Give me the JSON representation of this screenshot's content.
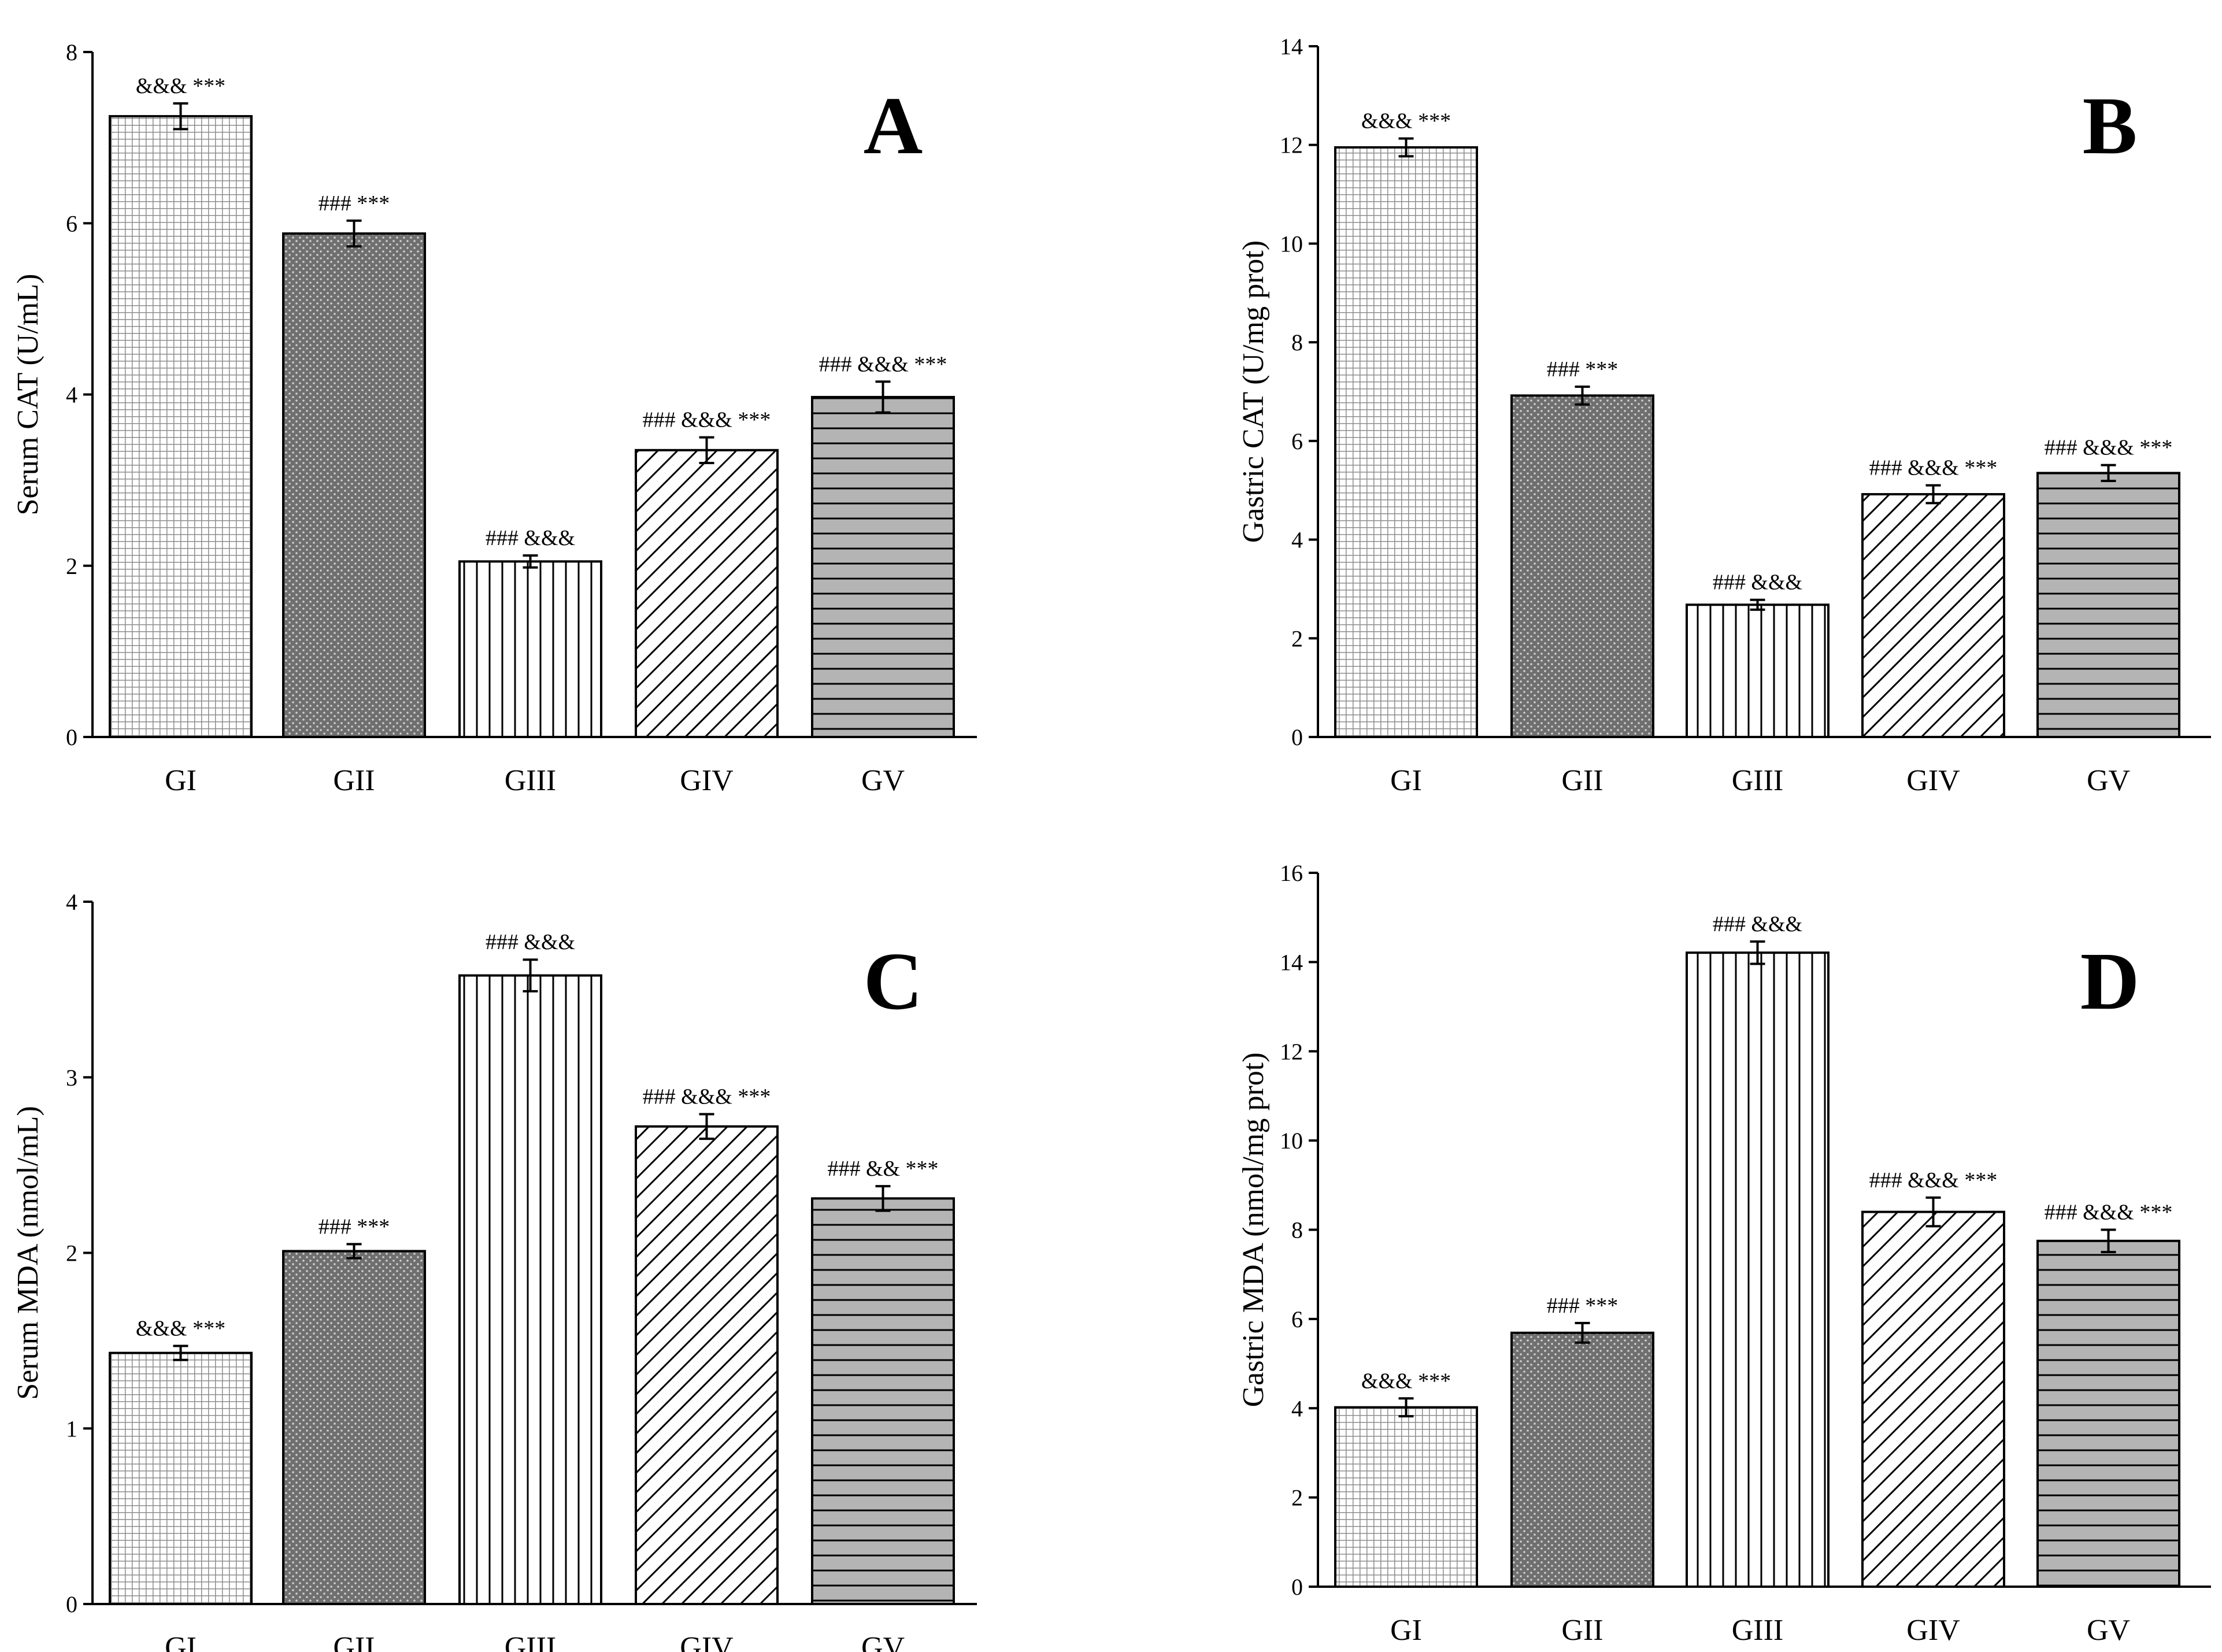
{
  "figure": {
    "colors": {
      "ink": "#000000",
      "background": "#ffffff",
      "dark_fill": "#6f6f6f",
      "hatch_fill": "#ffffff"
    },
    "patterns": [
      "grid",
      "dots",
      "vertical",
      "diagonal",
      "horizontal"
    ]
  },
  "chart_data": [
    {
      "id": "A",
      "type": "bar",
      "panel_label": "A",
      "title": "",
      "xlabel": "",
      "ylabel": "Serum CAT (U/mL)",
      "categories": [
        "GI",
        "GII",
        "GIII",
        "GIV",
        "GV"
      ],
      "values": [
        7.25,
        5.88,
        2.05,
        3.35,
        3.97
      ],
      "errors": [
        0.15,
        0.15,
        0.07,
        0.15,
        0.18
      ],
      "annotations": [
        "&&& ***",
        "### ***",
        "### &&&",
        "### &&& ***",
        "### &&& ***"
      ],
      "ylim": [
        0,
        8
      ],
      "yticks": [
        0,
        2,
        4,
        6,
        8
      ],
      "ytick_labels": [
        "0",
        "2",
        "4",
        "6",
        "8"
      ],
      "grid": false
    },
    {
      "id": "B",
      "type": "bar",
      "panel_label": "B",
      "title": "",
      "xlabel": "",
      "ylabel": "Gastric CAT (U/mg prot)",
      "categories": [
        "GI",
        "GII",
        "GIII",
        "GIV",
        "GV"
      ],
      "values": [
        11.95,
        6.92,
        2.68,
        4.92,
        5.35
      ],
      "errors": [
        0.18,
        0.18,
        0.1,
        0.18,
        0.16
      ],
      "annotations": [
        "&&& ***",
        "### ***",
        "### &&&",
        "### &&& ***",
        "### &&& ***"
      ],
      "ylim": [
        0,
        14
      ],
      "yticks": [
        0,
        2,
        4,
        6,
        8,
        10,
        12,
        14
      ],
      "ytick_labels": [
        "0",
        "2",
        "4",
        "6",
        "8",
        "10",
        "12",
        "14"
      ],
      "grid": false
    },
    {
      "id": "C",
      "type": "bar",
      "panel_label": "C",
      "title": "",
      "xlabel": "",
      "ylabel": "Serum MDA (nmol/mL)",
      "categories": [
        "GI",
        "GII",
        "GIII",
        "GIV",
        "GV"
      ],
      "values": [
        1.43,
        2.01,
        3.58,
        2.72,
        2.31
      ],
      "errors": [
        0.04,
        0.04,
        0.09,
        0.07,
        0.07
      ],
      "annotations": [
        "&&& ***",
        "### ***",
        "### &&&",
        "### &&& ***",
        "### && ***"
      ],
      "ylim": [
        0,
        4
      ],
      "yticks": [
        0,
        1,
        2,
        3,
        4
      ],
      "ytick_labels": [
        "0",
        "1",
        "2",
        "3",
        "4"
      ],
      "grid": false
    },
    {
      "id": "D",
      "type": "bar",
      "panel_label": "D",
      "title": "",
      "xlabel": "",
      "ylabel": "Gastric MDA (nmol/mg prot)",
      "categories": [
        "GI",
        "GII",
        "GIII",
        "GIV",
        "GV"
      ],
      "values": [
        4.02,
        5.69,
        14.21,
        8.4,
        7.75
      ],
      "errors": [
        0.2,
        0.22,
        0.25,
        0.32,
        0.25
      ],
      "annotations": [
        "&&& ***",
        "### ***",
        "### &&&",
        "### &&& ***",
        "### &&& ***"
      ],
      "ylim": [
        0,
        16
      ],
      "yticks": [
        0,
        2,
        4,
        6,
        8,
        10,
        12,
        14,
        16
      ],
      "ytick_labels": [
        "0",
        "2",
        "4",
        "6",
        "8",
        "10",
        "12",
        "14",
        "16"
      ],
      "grid": false
    }
  ]
}
